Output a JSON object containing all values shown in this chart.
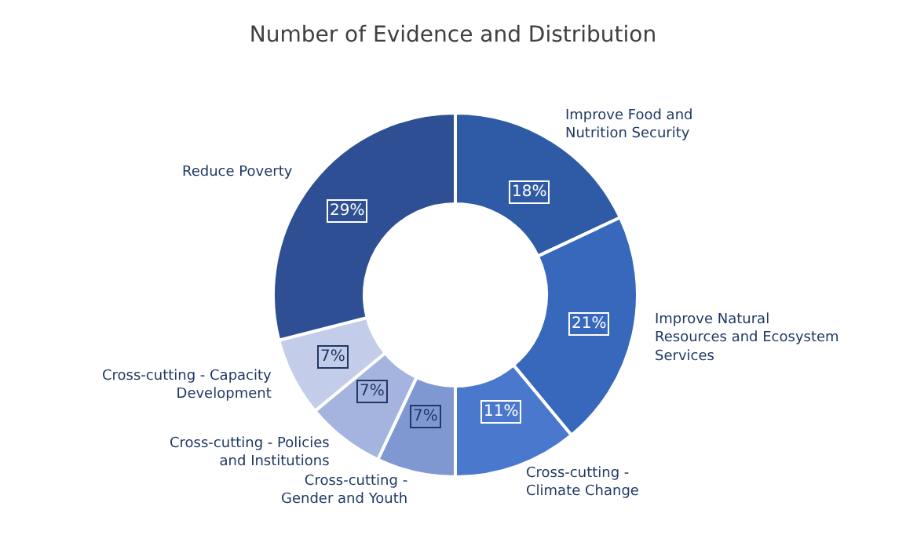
{
  "chart_data": {
    "type": "donut",
    "title": "Number of Evidence and Distribution",
    "categories": [
      "Improve Food and Nutrition Security",
      "Improve Natural Resources and Ecosystem Services",
      "Cross-cutting - Climate Change",
      "Cross-cutting - Gender and Youth",
      "Cross-cutting - Policies and Institutions",
      "Cross-cutting - Capacity Development",
      "Reduce Poverty"
    ],
    "values": [
      18,
      21,
      11,
      7,
      7,
      7,
      29
    ],
    "value_labels": [
      "18%",
      "21%",
      "11%",
      "7%",
      "7%",
      "7%",
      "29%"
    ],
    "colors": [
      "#2f5aa6",
      "#3868bb",
      "#4a78cc",
      "#7f98d2",
      "#a4b4de",
      "#c3cde9",
      "#2e4f93"
    ],
    "legend": false
  }
}
